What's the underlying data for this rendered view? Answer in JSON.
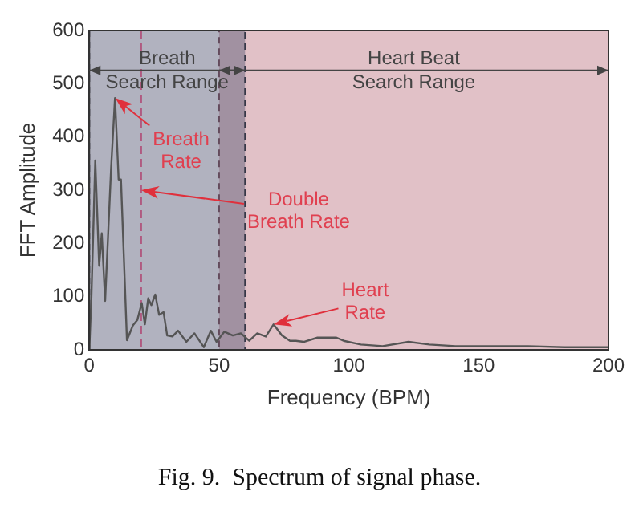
{
  "chart_data": {
    "type": "line",
    "xlabel": "Frequency (BPM)",
    "ylabel": "FFT Amplitude",
    "x": [
      0,
      0.8,
      2.3,
      3.8,
      4.8,
      6.1,
      8.4,
      9.9,
      11.3,
      12.2,
      14.5,
      16.8,
      18.5,
      20.2,
      21.4,
      22.7,
      23.9,
      25.4,
      26.9,
      28.6,
      30,
      32,
      34.2,
      37.4,
      40.5,
      44.1,
      46.8,
      49,
      52,
      55.3,
      58.4,
      61.6,
      64.7,
      68,
      71,
      74.2,
      77.3,
      79.6,
      82.6,
      87.9,
      95.2,
      98,
      104.6,
      113,
      123,
      131,
      141,
      154,
      169,
      183,
      200
    ],
    "series": [
      {
        "color": "#555555",
        "values": [
          0,
          97,
          356,
          158,
          219,
          92,
          341,
          473,
          320,
          320,
          18,
          46,
          56,
          88,
          48,
          97,
          84,
          104,
          66,
          71,
          27,
          25,
          36,
          15,
          31,
          5,
          36,
          15,
          34,
          27,
          31,
          17,
          31,
          25,
          48,
          27,
          17,
          17,
          15,
          23,
          23,
          17,
          10,
          7,
          15,
          10,
          7,
          7,
          7,
          5,
          5
        ]
      }
    ],
    "xlim": [
      0,
      200
    ],
    "xticks": [
      0,
      50,
      100,
      150,
      200
    ],
    "ylim": [
      0,
      600
    ],
    "yticks": [
      0,
      100,
      200,
      300,
      400,
      500,
      600
    ],
    "grid": false,
    "legend": false,
    "marker": "none",
    "line_style": "solid",
    "bands": [
      {
        "axis": "x",
        "from": 50,
        "to": 200,
        "label": "Heart Beat Search Range",
        "color": "#b46473"
      },
      {
        "axis": "x",
        "from": 0,
        "to": 60,
        "label": "Breath Search Range",
        "color": "#5a5c76"
      }
    ],
    "ref_lines": [
      {
        "axis": "x",
        "value": 20,
        "color": "#b05a80",
        "line_style": "dashed"
      }
    ],
    "annotations": [
      {
        "text": "Breath Rate",
        "x": 10,
        "y": 473
      },
      {
        "text": "Double Breath Rate",
        "x": 20,
        "y": 300
      },
      {
        "text": "Heart Rate",
        "x": 71,
        "y": 48
      },
      "Fig. 9.  Spectrum of signal phase."
    ]
  }
}
